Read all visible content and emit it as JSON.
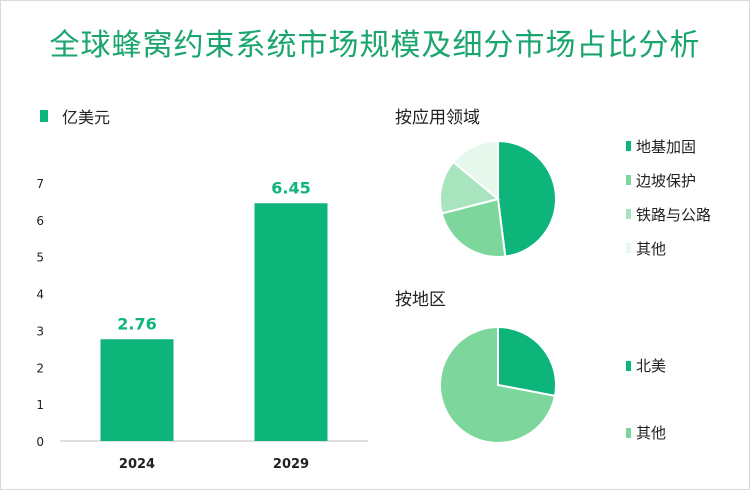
{
  "title": "全球蜂窝约束系统市场规模及细分市场占比分析",
  "unit_label": "亿美元",
  "colors": {
    "title": "#1aa56f",
    "bar": "#0db57a",
    "pie1": [
      "#0db57a",
      "#7dd69b",
      "#a8e4bd",
      "#e6f7ec"
    ],
    "pie2": [
      "#0db57a",
      "#7dd69b"
    ]
  },
  "chart_data": [
    {
      "type": "bar",
      "categories": [
        "2024",
        "2029"
      ],
      "values": [
        2.76,
        6.45
      ],
      "value_labels": [
        "2.76",
        "6.45"
      ],
      "ylim": [
        0,
        7
      ],
      "yticks": [
        "0",
        "1",
        "2",
        "3",
        "4",
        "5",
        "6",
        "7"
      ],
      "legend": "亿美元"
    },
    {
      "type": "pie",
      "title": "按应用领域",
      "labels": [
        "地基加固",
        "边坡保护",
        "铁路与公路",
        "其他"
      ],
      "values": [
        48,
        23,
        15,
        14
      ]
    },
    {
      "type": "pie",
      "title": "按地区",
      "labels": [
        "北美",
        "其他"
      ],
      "values": [
        28,
        72
      ]
    }
  ]
}
